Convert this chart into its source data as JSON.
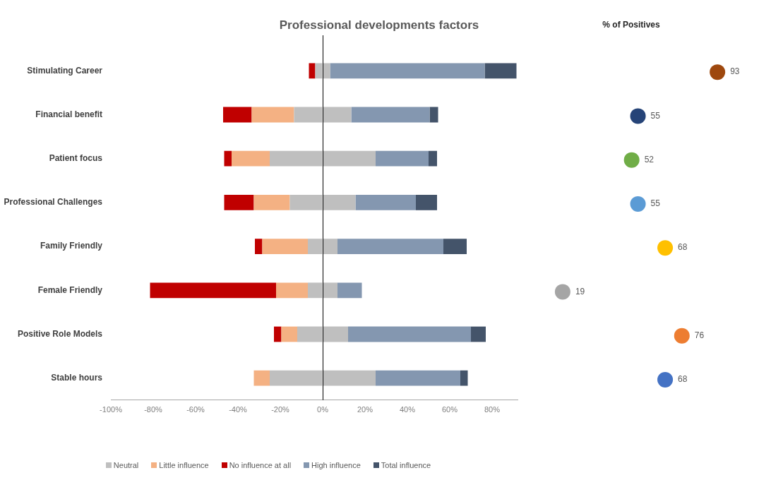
{
  "chart_data": [
    {
      "type": "bar",
      "title": "Professional developments factors",
      "orientation": "horizontal",
      "stacked": true,
      "legend": "bottom",
      "categories": [
        "Stimulating Career",
        "Financial benefit",
        "Patient focus",
        "Professional Challenges",
        "Family Friendly",
        "Female Friendly",
        "Positive Role Models",
        "Stable hours"
      ],
      "series": [
        {
          "name": "Neutral",
          "color": "#bfbfbf",
          "values": [
            -3.5,
            -13.5,
            -25,
            -15.5,
            -7,
            -7,
            -12,
            -25
          ]
        },
        {
          "color": "#bfbfbf",
          "values": [
            3.5,
            13.5,
            25,
            15.5,
            7,
            7,
            12,
            25
          ]
        },
        {
          "name": "Little influence",
          "color": "#f4b183",
          "values": [
            0,
            -20,
            -18,
            -17,
            -21.5,
            -15,
            -7.5,
            -7.5
          ]
        },
        {
          "name": "No influence at all",
          "color": "#c00000",
          "values": [
            -3,
            -13.5,
            -3.5,
            -14,
            -3.5,
            -59.5,
            -3.5,
            0
          ]
        },
        {
          "name": "High influence",
          "color": "#8497b0",
          "values": [
            73,
            37,
            25,
            28.5,
            50,
            11.5,
            58,
            40
          ]
        },
        {
          "name": "Total influence",
          "color": "#44546a",
          "values": [
            15,
            4,
            4,
            10,
            11,
            0,
            7,
            3.5
          ]
        }
      ],
      "xlim": [
        -100,
        92
      ],
      "xticks": [
        {
          "value": -100,
          "label": "-100%"
        },
        {
          "value": -80,
          "label": "-80%"
        },
        {
          "value": -60,
          "label": "-60%"
        },
        {
          "value": -40,
          "label": "-40%"
        },
        {
          "value": -20,
          "label": "-20%"
        },
        {
          "value": 0,
          "label": "0%"
        },
        {
          "value": 20,
          "label": "20%"
        },
        {
          "value": 40,
          "label": "40%"
        },
        {
          "value": 60,
          "label": "60%"
        },
        {
          "value": 80,
          "label": "80%"
        }
      ]
    },
    {
      "type": "scatter",
      "title": "% of Positives",
      "orientation": "horizontal",
      "marker": "circle",
      "data_labels": true,
      "tick_labels": false,
      "categories": [
        null,
        null,
        null,
        null,
        null,
        null,
        null,
        null
      ],
      "values": [
        93,
        55,
        52,
        55,
        68,
        19,
        76,
        68
      ],
      "colors": [
        "#9e480e",
        "#264478",
        "#70ad47",
        "#5b9bd5",
        "#ffc000",
        "#a5a5a5",
        "#ed7d31",
        "#4472c4"
      ]
    }
  ]
}
